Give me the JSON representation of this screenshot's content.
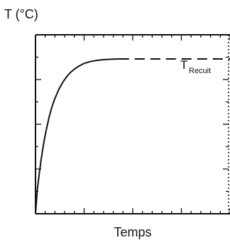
{
  "chart_data": {
    "type": "line",
    "title": "",
    "ylabel": "T (°C)",
    "xlabel": "Temps",
    "annotation": {
      "main": "T",
      "sub": "Recuit"
    },
    "xlim": [
      0,
      100
    ],
    "ylim": [
      0,
      100
    ],
    "grid": false,
    "series": [
      {
        "style": "solid",
        "color": "#111111",
        "x": [
          0,
          1,
          2,
          3,
          4,
          5,
          6,
          7,
          8,
          9,
          10,
          12,
          14,
          16,
          18,
          20,
          22,
          25,
          28,
          31,
          34,
          38,
          43
        ],
        "y": [
          0,
          14,
          23,
          31,
          38,
          44,
          49,
          54,
          58,
          61.5,
          64.5,
          69.5,
          73.5,
          76.5,
          79,
          80.8,
          82.3,
          84,
          85,
          85.6,
          86,
          86.3,
          86.5
        ]
      },
      {
        "style": "dashed",
        "color": "#111111",
        "x": [
          43,
          100
        ],
        "y": [
          86.5,
          86.5
        ]
      }
    ]
  }
}
